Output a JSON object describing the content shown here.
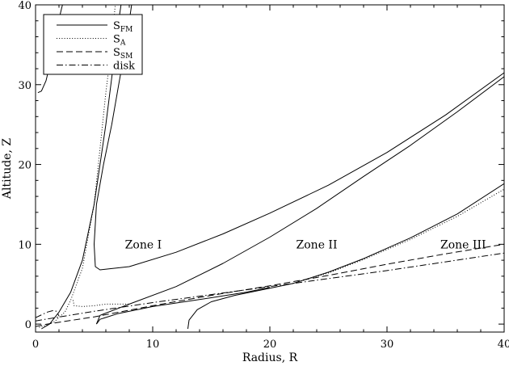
{
  "chart_data": {
    "type": "line",
    "title": "",
    "xlabel": "Radius, R",
    "ylabel": "Altitude, Z",
    "xlim": [
      0,
      40
    ],
    "ylim": [
      -1,
      40
    ],
    "xticks": [
      "0",
      "10",
      "20",
      "30",
      "40"
    ],
    "yticks": [
      "0",
      "10",
      "20",
      "30",
      "40"
    ],
    "grid": false,
    "legend_position": "top-left",
    "legend": [
      {
        "main": "S",
        "sub": "FM",
        "style": "solid"
      },
      {
        "main": "S",
        "sub": "A",
        "style": "dotted"
      },
      {
        "main": "S",
        "sub": "SM",
        "style": "dashed"
      },
      {
        "main": "disk",
        "sub": "",
        "style": "dashdot"
      }
    ],
    "annotations": [
      {
        "text": "Zone I",
        "x": 9.2,
        "y": 10
      },
      {
        "text": "Zone II",
        "x": 24,
        "y": 10
      },
      {
        "text": "Zone III",
        "x": 36.5,
        "y": 10
      }
    ],
    "series": [
      {
        "style": "solid",
        "points": [
          [
            0.2,
            29
          ],
          [
            0.5,
            29.2
          ],
          [
            0.9,
            30.5
          ],
          [
            1.3,
            33
          ],
          [
            1.8,
            37
          ],
          [
            2.3,
            40
          ]
        ]
      },
      {
        "style": "solid",
        "points": [
          [
            0.5,
            -0.6
          ],
          [
            1.2,
            0
          ],
          [
            2,
            1.5
          ],
          [
            3,
            4
          ],
          [
            4,
            8
          ],
          [
            5,
            15
          ],
          [
            5.5,
            20
          ],
          [
            6,
            25
          ],
          [
            6.6,
            32
          ],
          [
            7,
            37
          ],
          [
            7.3,
            40
          ]
        ]
      },
      {
        "style": "dotted",
        "points": [
          [
            3.2,
            3
          ],
          [
            3.3,
            2.3
          ],
          [
            4,
            2.2
          ],
          [
            5,
            2.3
          ],
          [
            6,
            2.5
          ],
          [
            8,
            2.5
          ]
        ]
      },
      {
        "style": "dotted",
        "points": [
          [
            0.3,
            -0.4
          ],
          [
            0.8,
            -0.2
          ],
          [
            1.6,
            0.3
          ],
          [
            2.5,
            1.5
          ],
          [
            3,
            3
          ],
          [
            4,
            7
          ],
          [
            5,
            15
          ],
          [
            5.5,
            22
          ],
          [
            6,
            29
          ],
          [
            6.5,
            35
          ],
          [
            6.8,
            40
          ]
        ]
      },
      {
        "style": "solid",
        "points": [
          [
            5.2,
            0
          ],
          [
            5.5,
            0.6
          ],
          [
            7,
            1.3
          ],
          [
            10,
            2.2
          ],
          [
            15,
            3.3
          ],
          [
            18,
            4
          ],
          [
            20,
            4.6
          ]
        ]
      },
      {
        "style": "solid",
        "points": [
          [
            5.2,
            0
          ],
          [
            5.5,
            1.1
          ],
          [
            8,
            2.5
          ],
          [
            12,
            4.7
          ],
          [
            16,
            7.6
          ],
          [
            20,
            10.9
          ],
          [
            24,
            14.5
          ],
          [
            28,
            18.5
          ],
          [
            32,
            22.4
          ],
          [
            36,
            26.6
          ],
          [
            40,
            31
          ]
        ]
      },
      {
        "style": "solid",
        "points": [
          [
            8.2,
            40
          ],
          [
            7.7,
            35
          ],
          [
            7.1,
            30
          ],
          [
            6.5,
            25
          ],
          [
            5.8,
            20
          ],
          [
            5.2,
            15
          ],
          [
            5,
            10
          ],
          [
            5.1,
            7.2
          ],
          [
            5.5,
            6.8
          ],
          [
            8,
            7.2
          ],
          [
            12,
            9
          ],
          [
            16,
            11.3
          ],
          [
            20,
            13.9
          ],
          [
            25,
            17.4
          ],
          [
            30,
            21.5
          ],
          [
            35,
            26.2
          ],
          [
            40,
            31.5
          ]
        ]
      },
      {
        "style": "solid",
        "points": [
          [
            13,
            -0.6
          ],
          [
            13.1,
            0.5
          ],
          [
            13.8,
            1.8
          ],
          [
            15,
            2.8
          ],
          [
            17,
            3.6
          ],
          [
            20,
            4.5
          ],
          [
            22,
            5.1
          ],
          [
            25,
            6.5
          ],
          [
            28,
            8.2
          ],
          [
            32,
            10.8
          ],
          [
            36,
            13.8
          ],
          [
            40,
            17.6
          ]
        ]
      },
      {
        "style": "dotted",
        "points": [
          [
            22,
            5.1
          ],
          [
            25,
            6.4
          ],
          [
            28,
            8.1
          ],
          [
            32,
            10.6
          ],
          [
            36,
            13.5
          ],
          [
            40,
            16.9
          ]
        ]
      },
      {
        "style": "dashed",
        "points": [
          [
            0,
            -0.3
          ],
          [
            1,
            0
          ],
          [
            5,
            0.9
          ],
          [
            10,
            2.3
          ],
          [
            15,
            3.6
          ],
          [
            20,
            4.8
          ],
          [
            25,
            6.1
          ],
          [
            30,
            7.5
          ],
          [
            35,
            8.8
          ],
          [
            40,
            10
          ]
        ]
      },
      {
        "style": "dashdot",
        "points": [
          [
            0,
            0.4
          ],
          [
            5,
            1.6
          ],
          [
            10,
            2.7
          ],
          [
            15,
            3.7
          ],
          [
            20,
            4.7
          ],
          [
            25,
            5.7
          ],
          [
            30,
            6.7
          ],
          [
            35,
            7.8
          ],
          [
            40,
            8.9
          ]
        ]
      },
      {
        "style": "dashdot",
        "points": [
          [
            0,
            0.8
          ],
          [
            1,
            1.5
          ],
          [
            1.5,
            1.7
          ],
          [
            1.8,
            1.6
          ],
          [
            2,
            1
          ]
        ]
      }
    ]
  }
}
